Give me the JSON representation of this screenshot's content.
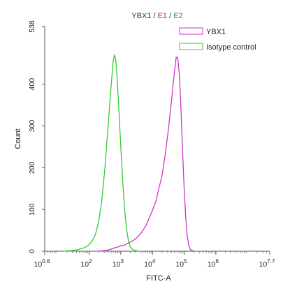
{
  "chart_data": {
    "type": "line",
    "title_parts": [
      {
        "text": "YBX1",
        "color": "#333333"
      },
      {
        "text": " / ",
        "color": "#333333"
      },
      {
        "text": "E1",
        "color": "#d0202a"
      },
      {
        "text": " / ",
        "color": "#333333"
      },
      {
        "text": "E2",
        "color": "#1f9a2f"
      }
    ],
    "xlabel": "FITC-A",
    "ylabel": "Count",
    "x_scale": "log",
    "xlim": [
      3.98,
      50118723
    ],
    "ylim": [
      0,
      538
    ],
    "x_ticks": [
      {
        "value": 3.98,
        "base": "10",
        "exp": "0.6"
      },
      {
        "value": 100,
        "base": "10",
        "exp": "2"
      },
      {
        "value": 1000,
        "base": "10",
        "exp": "3"
      },
      {
        "value": 10000,
        "base": "10",
        "exp": "4"
      },
      {
        "value": 100000,
        "base": "10",
        "exp": "5"
      },
      {
        "value": 1000000,
        "base": "10",
        "exp": "6"
      },
      {
        "value": 50118723,
        "base": "10",
        "exp": "7.7"
      }
    ],
    "y_ticks": [
      0,
      100,
      200,
      300,
      400,
      538
    ],
    "grid": false,
    "legend_position": "top-right",
    "series": [
      {
        "name": "YBX1",
        "color": "#cc33cc",
        "points": [
          [
            200,
            0
          ],
          [
            355,
            2
          ],
          [
            501,
            5
          ],
          [
            631,
            8
          ],
          [
            794,
            10
          ],
          [
            1000,
            13
          ],
          [
            1259,
            14
          ],
          [
            1585,
            18
          ],
          [
            1995,
            22
          ],
          [
            2512,
            26
          ],
          [
            3162,
            32
          ],
          [
            3981,
            40
          ],
          [
            5012,
            50
          ],
          [
            6310,
            62
          ],
          [
            7943,
            80
          ],
          [
            10000,
            98
          ],
          [
            12589,
            118
          ],
          [
            15849,
            150
          ],
          [
            19953,
            180
          ],
          [
            25119,
            230
          ],
          [
            31623,
            290
          ],
          [
            39811,
            360
          ],
          [
            47863,
            420
          ],
          [
            56234,
            465
          ],
          [
            63096,
            462
          ],
          [
            70795,
            420
          ],
          [
            79433,
            340
          ],
          [
            89125,
            240
          ],
          [
            100000,
            150
          ],
          [
            112202,
            80
          ],
          [
            125893,
            35
          ],
          [
            141254,
            12
          ],
          [
            158489,
            4
          ],
          [
            199526,
            0
          ]
        ]
      },
      {
        "name": "Isotype control",
        "color": "#33cc33",
        "points": [
          [
            15.8,
            0
          ],
          [
            25.1,
            1
          ],
          [
            39.8,
            3
          ],
          [
            63.1,
            7
          ],
          [
            79.4,
            10
          ],
          [
            100,
            16
          ],
          [
            125.9,
            25
          ],
          [
            158.5,
            40
          ],
          [
            199.5,
            70
          ],
          [
            251.2,
            120
          ],
          [
            316.2,
            200
          ],
          [
            398.1,
            300
          ],
          [
            501.2,
            400
          ],
          [
            575.4,
            455
          ],
          [
            631,
            470
          ],
          [
            691.8,
            460
          ],
          [
            758.6,
            420
          ],
          [
            871,
            340
          ],
          [
            1000,
            250
          ],
          [
            1148,
            170
          ],
          [
            1318,
            100
          ],
          [
            1514,
            55
          ],
          [
            1738,
            25
          ],
          [
            1995,
            10
          ],
          [
            2512,
            3
          ],
          [
            3162,
            1
          ],
          [
            3981,
            0
          ]
        ]
      }
    ]
  }
}
